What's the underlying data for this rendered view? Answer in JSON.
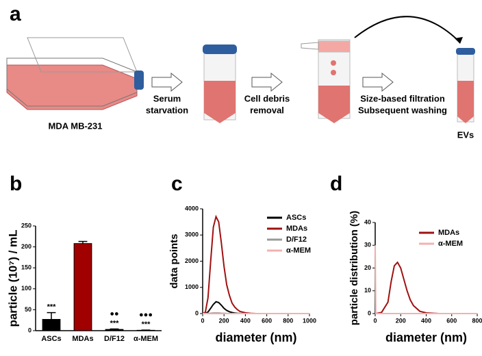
{
  "panel_labels": [
    "a",
    "b",
    "c",
    "d"
  ],
  "diagram": {
    "cell_line": "MDA MB-231",
    "steps": [
      [
        "Serum",
        "starvation"
      ],
      [
        "Cell debris",
        "removal"
      ],
      [
        "Size-based filtration",
        "Subsequent washing"
      ]
    ],
    "product": "EVs"
  },
  "chart_data": [
    {
      "type": "bar",
      "ylabel": "particle (10⁷) / mL",
      "categories": [
        "ASCs",
        "MDAs",
        "D/F12",
        "α-MEM"
      ],
      "values": [
        27,
        208,
        3,
        1
      ],
      "errors": [
        16,
        5,
        1,
        0.5
      ],
      "colors": [
        "#000000",
        "#a00000",
        "#000000",
        "#000000"
      ],
      "significance": [
        "***",
        null,
        "***",
        "***"
      ],
      "dots": [
        null,
        null,
        "●●",
        "●●●"
      ],
      "ylim": [
        0,
        250
      ],
      "yticks": [
        0,
        50,
        100,
        150,
        200,
        250
      ]
    },
    {
      "type": "line",
      "xlabel": "diameter (nm)",
      "ylabel": "data points",
      "x": [
        0,
        25,
        50,
        75,
        100,
        125,
        150,
        175,
        200,
        225,
        250,
        275,
        300,
        325,
        350,
        400,
        450,
        500,
        600,
        800,
        1000
      ],
      "series": [
        {
          "name": "ASCs",
          "color": "#000000",
          "values": [
            0,
            5,
            60,
            200,
            350,
            450,
            420,
            320,
            200,
            120,
            70,
            40,
            20,
            10,
            5,
            0,
            0,
            0,
            0,
            0,
            0
          ]
        },
        {
          "name": "MDAs",
          "color": "#a01010",
          "values": [
            0,
            50,
            600,
            2000,
            3300,
            3700,
            3500,
            2700,
            1800,
            1100,
            700,
            400,
            250,
            150,
            80,
            30,
            10,
            0,
            0,
            0,
            0
          ]
        },
        {
          "name": "D/F12",
          "color": "#999999",
          "values": [
            0,
            0,
            5,
            15,
            25,
            30,
            25,
            15,
            10,
            5,
            3,
            0,
            0,
            0,
            0,
            0,
            0,
            0,
            0,
            0,
            0
          ]
        },
        {
          "name": "α-MEM",
          "color": "#f4b0b0",
          "values": [
            0,
            0,
            2,
            5,
            8,
            10,
            8,
            5,
            3,
            1,
            0,
            0,
            0,
            0,
            0,
            0,
            0,
            0,
            0,
            0,
            0
          ]
        }
      ],
      "xlim": [
        0,
        1000
      ],
      "xticks": [
        0,
        200,
        400,
        600,
        800,
        1000
      ],
      "ylim": [
        0,
        4000
      ],
      "yticks": [
        0,
        1000,
        2000,
        3000,
        4000
      ]
    },
    {
      "type": "line",
      "xlabel": "diameter (nm)",
      "ylabel": "particle distribution (%)",
      "x": [
        0,
        5,
        50,
        100,
        125,
        150,
        175,
        200,
        225,
        250,
        275,
        300,
        350,
        400,
        500,
        600,
        800
      ],
      "series": [
        {
          "name": "MDAs",
          "color": "#a01010",
          "values": [
            0,
            0,
            0.5,
            5,
            14,
            21,
            22.5,
            20,
            15,
            10,
            6,
            3.5,
            1,
            0.3,
            0,
            0,
            0
          ]
        },
        {
          "name": "α-MEM",
          "color": "#f4b0b0",
          "values": [
            30,
            0,
            0,
            0,
            0,
            0,
            0,
            0,
            0,
            0,
            0,
            0,
            0,
            0,
            0,
            0,
            0
          ]
        }
      ],
      "xlim": [
        0,
        800
      ],
      "xticks": [
        0,
        200,
        400,
        600,
        800
      ],
      "ylim": [
        0,
        40
      ],
      "yticks": [
        0,
        10,
        20,
        30,
        40
      ]
    }
  ]
}
